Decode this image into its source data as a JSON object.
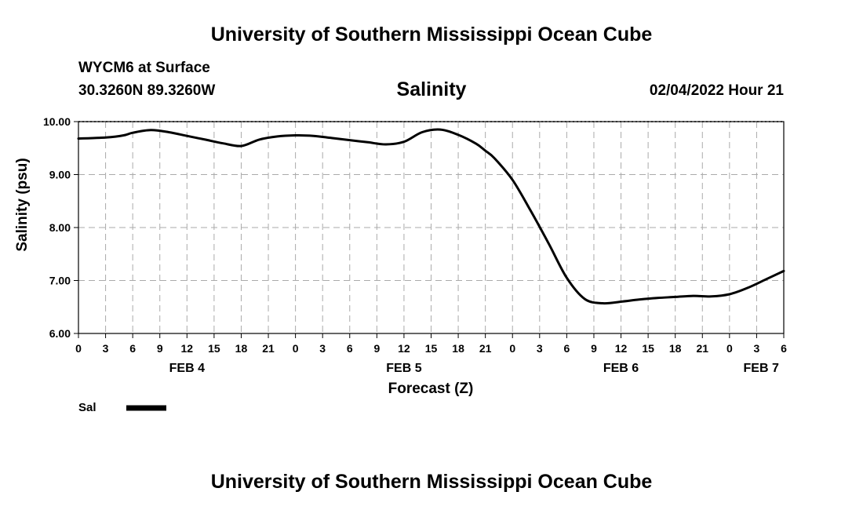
{
  "header": {
    "title": "University of Southern Mississippi Ocean Cube",
    "station": "WYCM6 at Surface",
    "coords": "30.3260N  89.3260W",
    "datetime": "02/04/2022 Hour 21"
  },
  "footer": {
    "title": "University of Southern Mississippi Ocean Cube"
  },
  "chart_data": {
    "type": "line",
    "title": "Salinity",
    "xlabel": "Forecast (Z)",
    "ylabel": "Salinity (psu)",
    "ylim": [
      6.0,
      10.0
    ],
    "yticks": [
      "6.00",
      "7.00",
      "8.00",
      "9.00",
      "10.00"
    ],
    "x_range_hours": [
      0,
      78
    ],
    "x_tick_labels": [
      "0",
      "3",
      "6",
      "9",
      "12",
      "15",
      "18",
      "21",
      "0",
      "3",
      "6",
      "9",
      "12",
      "15",
      "18",
      "21",
      "0",
      "3",
      "6",
      "9",
      "12",
      "15",
      "18",
      "21",
      "0",
      "3",
      "6"
    ],
    "date_labels": [
      {
        "label": "FEB 4",
        "hour": 12
      },
      {
        "label": "FEB 5",
        "hour": 36
      },
      {
        "label": "FEB 6",
        "hour": 60
      },
      {
        "label": "FEB 7",
        "hour": 75.5
      }
    ],
    "grid": true,
    "legend": [
      {
        "label": "Sal",
        "color": "#000000"
      }
    ],
    "series": [
      {
        "name": "Sal",
        "x": [
          0,
          3,
          5,
          6,
          8,
          10,
          12,
          14,
          16,
          18,
          20,
          22,
          24,
          26,
          28,
          30,
          32,
          34,
          36,
          38,
          40,
          42,
          44,
          45,
          46,
          48,
          50,
          52,
          54,
          56,
          58,
          60,
          62,
          64,
          66,
          68,
          70,
          72,
          74,
          76,
          78
        ],
        "y": [
          9.68,
          9.7,
          9.74,
          9.79,
          9.84,
          9.8,
          9.73,
          9.66,
          9.59,
          9.54,
          9.66,
          9.72,
          9.74,
          9.73,
          9.69,
          9.65,
          9.61,
          9.57,
          9.62,
          9.8,
          9.85,
          9.75,
          9.58,
          9.45,
          9.31,
          8.9,
          8.32,
          7.7,
          7.05,
          6.65,
          6.57,
          6.6,
          6.64,
          6.67,
          6.69,
          6.71,
          6.7,
          6.74,
          6.86,
          7.02,
          7.18
        ]
      }
    ]
  }
}
